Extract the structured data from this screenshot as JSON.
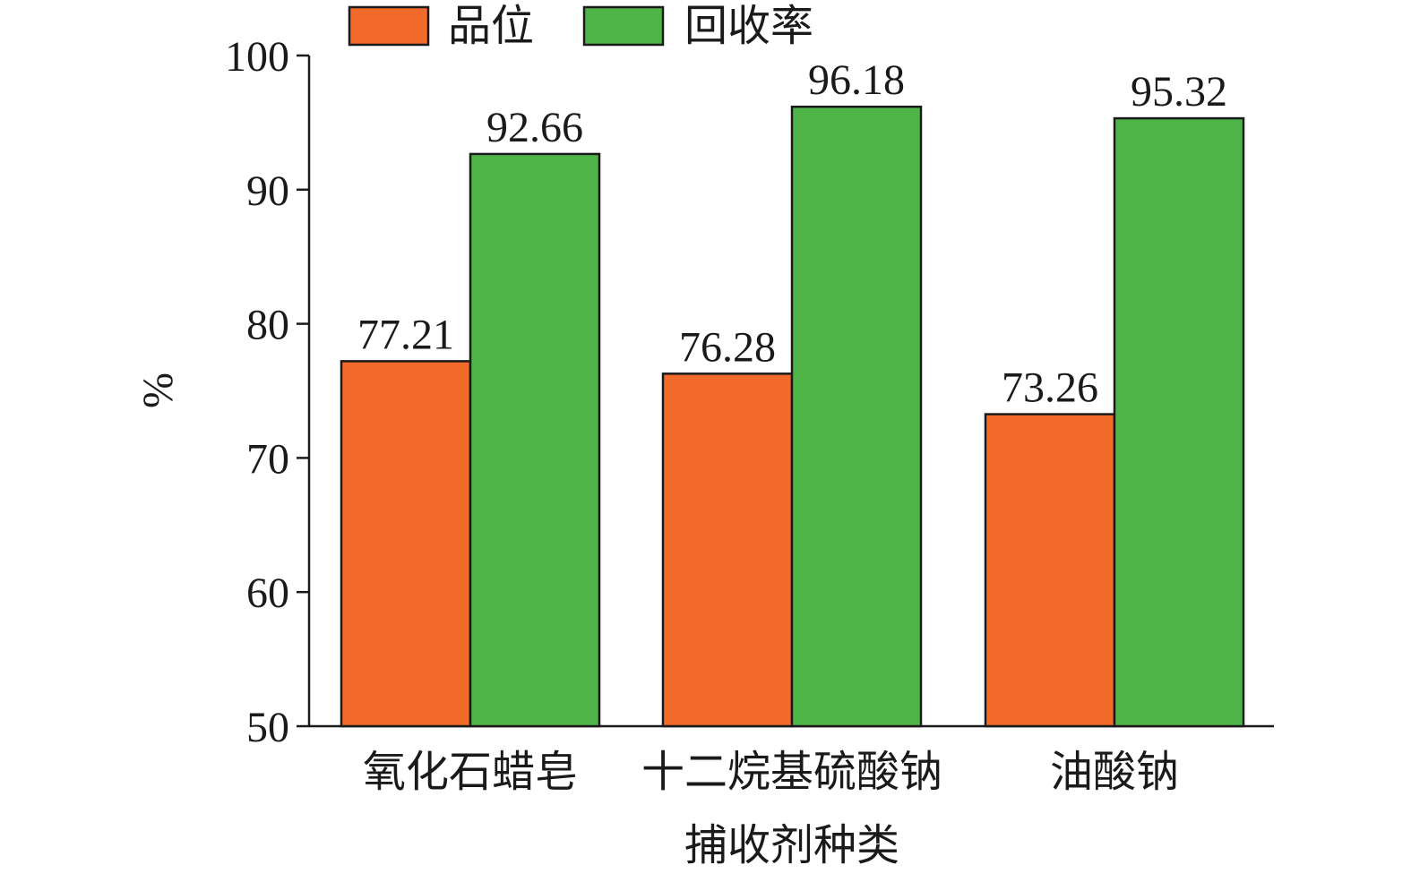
{
  "chart_data": {
    "type": "bar",
    "xlabel": "捕收剂种类",
    "ylabel": "%",
    "ylim": [
      50,
      100
    ],
    "yticks": [
      50,
      60,
      70,
      80,
      90,
      100
    ],
    "legend_position": "top-left",
    "grid": false,
    "categories": [
      "氧化石蜡皂",
      "十二烷基硫酸钠",
      "油酸钠"
    ],
    "series": [
      {
        "name": "品位",
        "color": "#f26b2a",
        "values": [
          77.21,
          76.28,
          73.26
        ]
      },
      {
        "name": "回收率",
        "color": "#4fb548",
        "values": [
          92.66,
          96.18,
          95.32
        ]
      }
    ],
    "data_labels": [
      [
        "77.21",
        "76.28",
        "73.26"
      ],
      [
        "92.66",
        "96.18",
        "95.32"
      ]
    ]
  }
}
